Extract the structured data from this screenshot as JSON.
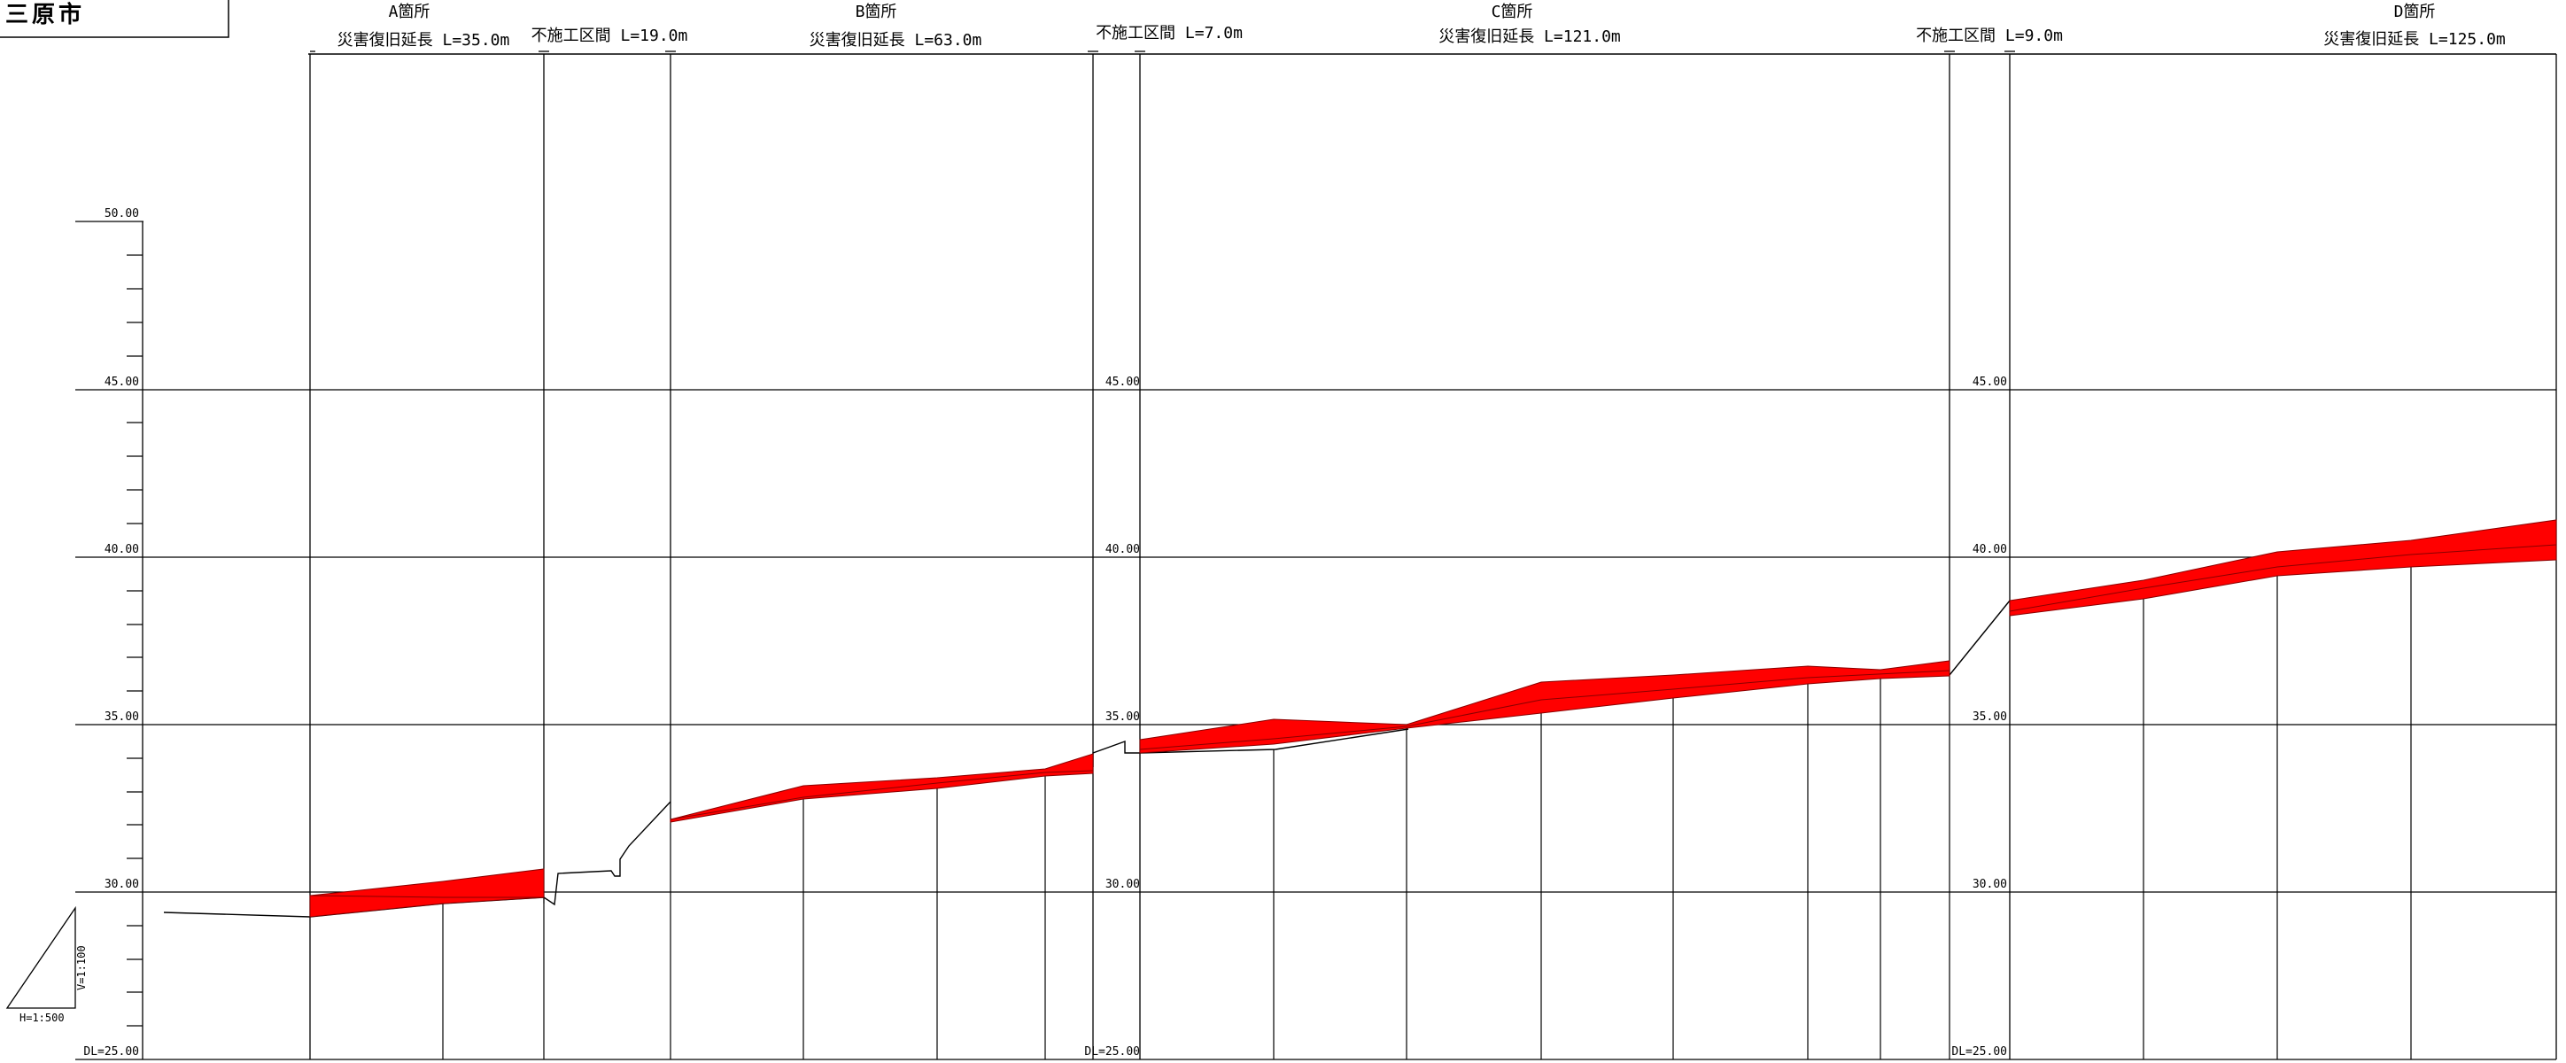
{
  "city_label": "三原市",
  "scale": {
    "horizontal": "H=1:500",
    "vertical": "V=1:100"
  },
  "datum_label": "DL=25.00",
  "elevation_ticks": [
    "50.00",
    "45.00",
    "40.00",
    "35.00",
    "30.00"
  ],
  "section_labels": [
    {
      "name": "A箇所",
      "length": "災害復旧延長 L=35.0m"
    },
    {
      "name": "",
      "length": "不施工区間 L=19.0m"
    },
    {
      "name": "B箇所",
      "length": "災害復旧延長 L=63.0m"
    },
    {
      "name": "",
      "length": "不施工区間 L=7.0m"
    },
    {
      "name": "C箇所",
      "length": "災害復旧延長 L=121.0m"
    },
    {
      "name": "",
      "length": "不施工区間 L=9.0m"
    },
    {
      "name": "D箇所",
      "length": "災害復旧延長 L=125.0m"
    }
  ],
  "colors": {
    "line": "#000000",
    "repair_fill": "#ff0000",
    "repair_stroke": "#8a0000",
    "background": "#ffffff"
  }
}
